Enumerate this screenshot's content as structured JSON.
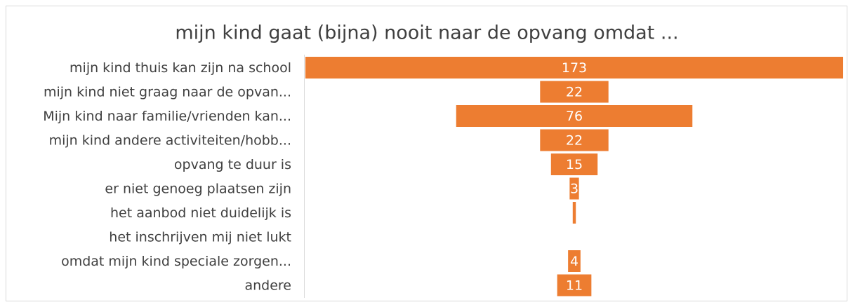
{
  "chart_data": {
    "type": "funnel",
    "title": "mijn kind gaat (bijna) nooit naar de opvang omdat ...",
    "categories": [
      "mijn kind thuis kan zijn na school",
      "mijn kind niet graag naar de opvan...",
      "Mijn kind naar familie/vrienden kan...",
      "mijn kind andere activiteiten/hobb...",
      "opvang te duur is",
      "er niet genoeg plaatsen zijn",
      "het aanbod niet duidelijk is",
      "het inschrijven mij niet lukt",
      "omdat mijn kind speciale zorgen...",
      "andere"
    ],
    "values": [
      173,
      22,
      76,
      22,
      15,
      3,
      1,
      0,
      4,
      11
    ],
    "color": "#ed7d31"
  }
}
